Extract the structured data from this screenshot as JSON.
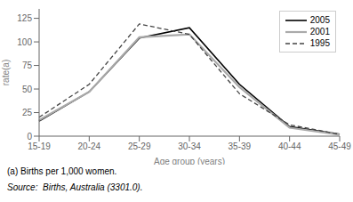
{
  "chart_data": {
    "type": "line",
    "categories": [
      "15-19",
      "20-24",
      "25-29",
      "30-34",
      "35-39",
      "40-44",
      "45-49"
    ],
    "series": [
      {
        "name": "2005",
        "color": "#000000",
        "values": [
          16,
          47,
          104,
          115,
          55,
          10,
          2
        ],
        "line_style": "solid"
      },
      {
        "name": "2001",
        "color": "#aaaaaa",
        "values": [
          17,
          47,
          105,
          108,
          52,
          9,
          1.5
        ],
        "line_style": "solid"
      },
      {
        "name": "1995",
        "color": "#444444",
        "values": [
          20,
          55,
          119,
          108,
          45,
          12,
          2
        ],
        "line_style": "dashed"
      }
    ],
    "xlabel": "Age group (years)",
    "ylabel": "rate(a)",
    "ylim": [
      0,
      135
    ],
    "yticks": [
      0,
      25,
      50,
      75,
      100,
      125
    ],
    "grid": false,
    "legend": "upper right",
    "annotations": [
      "(a) Births per 1,000 women.",
      "Source:  Births, Australia (3301.0)."
    ]
  }
}
